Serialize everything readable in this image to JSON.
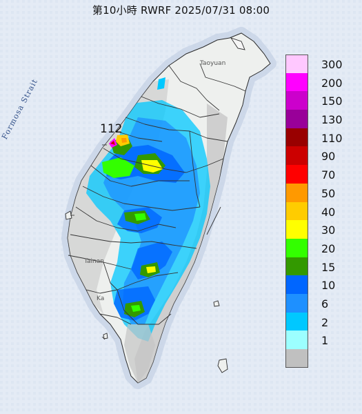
{
  "title": "第10小時  RWRF 2025/07/31 08:00",
  "max_value_label": "112",
  "map_labels": {
    "strait": "Formosa Strait",
    "taoyuan": "Taoyuan",
    "tainan": "Tainan",
    "kaohsiung": "Ka"
  },
  "legend": [
    {
      "label": "300",
      "color": "#ffc8ff"
    },
    {
      "label": "200",
      "color": "#ff00ff"
    },
    {
      "label": "150",
      "color": "#cc00cc"
    },
    {
      "label": "130",
      "color": "#990099"
    },
    {
      "label": "110",
      "color": "#990000"
    },
    {
      "label": "90",
      "color": "#cc0000"
    },
    {
      "label": "70",
      "color": "#ff0000"
    },
    {
      "label": "50",
      "color": "#ff9900"
    },
    {
      "label": "40",
      "color": "#ffcc00"
    },
    {
      "label": "30",
      "color": "#ffff00"
    },
    {
      "label": "20",
      "color": "#33ff00"
    },
    {
      "label": "15",
      "color": "#339900"
    },
    {
      "label": "10",
      "color": "#0066ff"
    },
    {
      "label": "6",
      "color": "#1e90ff"
    },
    {
      "label": "2",
      "color": "#00c8ff"
    },
    {
      "label": "1",
      "color": "#9cffff"
    },
    {
      "label": "",
      "color": "#c0c0c0"
    }
  ]
}
